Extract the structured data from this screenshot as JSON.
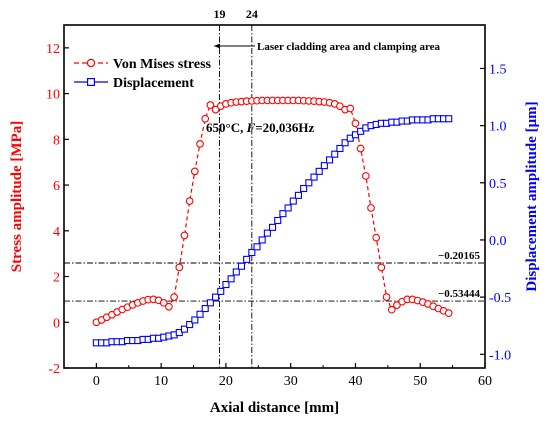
{
  "chart_data": {
    "type": "line",
    "xlabel": "Axial distance [mm]",
    "ylabel_left": "Stress amplitude [MPa]",
    "ylabel_right": "Displacement amplitude [μm]",
    "xlim": [
      -5,
      60
    ],
    "ylim_left": [
      -2,
      13
    ],
    "ylim_right": [
      -1.12,
      1.88
    ],
    "x_ticks": [
      "0",
      "10",
      "20",
      "30",
      "40",
      "50",
      "60"
    ],
    "y_left_ticks": [
      "-2",
      "0",
      "2",
      "4",
      "6",
      "8",
      "10",
      "12"
    ],
    "y_right_ticks": [
      "-1.0",
      "-0.5",
      "0.0",
      "0.5",
      "1.0",
      "1.5"
    ],
    "colors": {
      "stress": "#ff0000",
      "displacement": "#0000ff",
      "reference": "#000000"
    },
    "legend": {
      "position": "top-left",
      "entries": [
        "Von Mises stress",
        "Displacement"
      ]
    },
    "series": [
      {
        "name": "Von Mises stress",
        "axis": "left",
        "marker": "circle",
        "line": "dashed",
        "x": [
          0,
          0.8,
          1.6,
          2.4,
          3.2,
          4.0,
          4.8,
          5.6,
          6.4,
          7.2,
          8.0,
          8.8,
          9.6,
          10.4,
          11.2,
          12.0,
          12.8,
          13.6,
          14.4,
          15.2,
          16.0,
          16.8,
          17.6,
          18.4,
          19.2,
          20.0,
          20.8,
          21.6,
          22.4,
          23.2,
          24.0,
          24.8,
          25.6,
          26.4,
          27.2,
          28.0,
          28.8,
          29.6,
          30.4,
          31.2,
          32.0,
          32.8,
          33.6,
          34.4,
          35.2,
          36.0,
          36.8,
          37.6,
          38.4,
          39.2,
          40.0,
          40.8,
          41.6,
          42.4,
          43.2,
          44.0,
          44.8,
          45.6,
          46.4,
          47.2,
          48.0,
          48.8,
          49.6,
          50.4,
          51.2,
          52.0,
          52.8,
          53.6,
          54.4
        ],
        "y": [
          0.0,
          0.1,
          0.22,
          0.33,
          0.45,
          0.56,
          0.66,
          0.76,
          0.85,
          0.93,
          0.99,
          1.0,
          0.96,
          0.85,
          0.68,
          1.1,
          2.4,
          3.8,
          5.3,
          6.6,
          7.8,
          8.9,
          9.5,
          9.3,
          9.45,
          9.55,
          9.6,
          9.63,
          9.65,
          9.67,
          9.68,
          9.69,
          9.7,
          9.7,
          9.7,
          9.7,
          9.7,
          9.7,
          9.7,
          9.7,
          9.69,
          9.68,
          9.67,
          9.65,
          9.63,
          9.6,
          9.55,
          9.45,
          9.3,
          9.35,
          8.7,
          7.6,
          6.4,
          5.0,
          3.7,
          2.4,
          1.1,
          0.55,
          0.75,
          0.9,
          1.0,
          1.0,
          0.95,
          0.88,
          0.8,
          0.7,
          0.6,
          0.5,
          0.4
        ]
      },
      {
        "name": "Displacement",
        "axis": "right",
        "marker": "square",
        "line": "solid",
        "x": [
          0,
          0.8,
          1.6,
          2.4,
          3.2,
          4.0,
          4.8,
          5.6,
          6.4,
          7.2,
          8.0,
          8.8,
          9.6,
          10.4,
          11.2,
          12.0,
          12.8,
          13.6,
          14.4,
          15.2,
          16.0,
          16.8,
          17.6,
          18.4,
          19.2,
          20.0,
          20.8,
          21.6,
          22.4,
          23.2,
          24.0,
          24.8,
          25.6,
          26.4,
          27.2,
          28.0,
          28.8,
          29.6,
          30.4,
          31.2,
          32.0,
          32.8,
          33.6,
          34.4,
          35.2,
          36.0,
          36.8,
          37.6,
          38.4,
          39.2,
          40.0,
          40.8,
          41.6,
          42.4,
          43.2,
          44.0,
          44.8,
          45.6,
          46.4,
          47.2,
          48.0,
          48.8,
          49.6,
          50.4,
          51.2,
          52.0,
          52.8,
          53.6,
          54.4
        ],
        "y": [
          -0.9,
          -0.9,
          -0.9,
          -0.89,
          -0.89,
          -0.89,
          -0.88,
          -0.88,
          -0.88,
          -0.87,
          -0.87,
          -0.86,
          -0.86,
          -0.85,
          -0.84,
          -0.83,
          -0.81,
          -0.78,
          -0.74,
          -0.7,
          -0.65,
          -0.6,
          -0.55,
          -0.5,
          -0.45,
          -0.39,
          -0.34,
          -0.28,
          -0.23,
          -0.17,
          -0.11,
          -0.06,
          0.0,
          0.06,
          0.11,
          0.17,
          0.23,
          0.28,
          0.34,
          0.39,
          0.45,
          0.5,
          0.55,
          0.6,
          0.65,
          0.7,
          0.75,
          0.8,
          0.85,
          0.89,
          0.92,
          0.95,
          0.98,
          1.0,
          1.01,
          1.02,
          1.02,
          1.03,
          1.03,
          1.04,
          1.04,
          1.05,
          1.05,
          1.05,
          1.05,
          1.06,
          1.06,
          1.06,
          1.06
        ]
      }
    ],
    "vlines": [
      {
        "x": 19,
        "label": "19"
      },
      {
        "x": 24,
        "label": "24"
      }
    ],
    "hlines": [
      {
        "y_right": -0.20165,
        "label": "−0.20165"
      },
      {
        "y_right": -0.53444,
        "label": "−0.53444"
      }
    ],
    "annotations": {
      "region_label": "Laser cladding area and clamping area",
      "condition_prefix": "650°C, ",
      "condition_var": "F",
      "condition_value": "=20,036Hz"
    }
  }
}
